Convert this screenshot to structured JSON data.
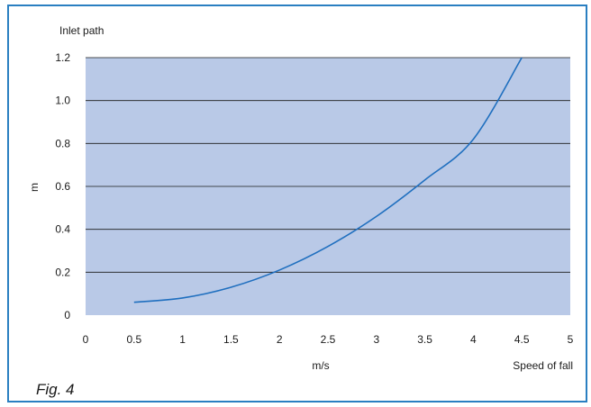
{
  "colors": {
    "frame_border": "#2a7fc1",
    "plot_background": "#b9c9e7",
    "gridline": "#1a1a1a",
    "curve": "#1f6fbf",
    "text": "#1a1a1a"
  },
  "figure": {
    "caption": "Fig. 4"
  },
  "chart_data": {
    "type": "line",
    "title": "",
    "y_axis_top_label": "Inlet path",
    "xlabel": "m/s",
    "xlabel_right": "Speed of fall",
    "ylabel": "m",
    "xlim": [
      0,
      5
    ],
    "ylim": [
      0,
      1.2
    ],
    "x_ticks": [
      "0",
      "0.5",
      "1",
      "1.5",
      "2",
      "2.5",
      "3",
      "3.5",
      "4",
      "4.5",
      "5"
    ],
    "y_ticks": [
      "0",
      "0.2",
      "0.4",
      "0.6",
      "0.8",
      "1.0",
      "1.2"
    ],
    "grid": "horizontal",
    "series": [
      {
        "x": [
          0.5,
          1.0,
          1.5,
          2.0,
          2.5,
          3.0,
          3.5,
          4.0,
          4.5
        ],
        "y": [
          0.06,
          0.08,
          0.13,
          0.21,
          0.32,
          0.46,
          0.63,
          0.82,
          1.2
        ]
      }
    ]
  }
}
